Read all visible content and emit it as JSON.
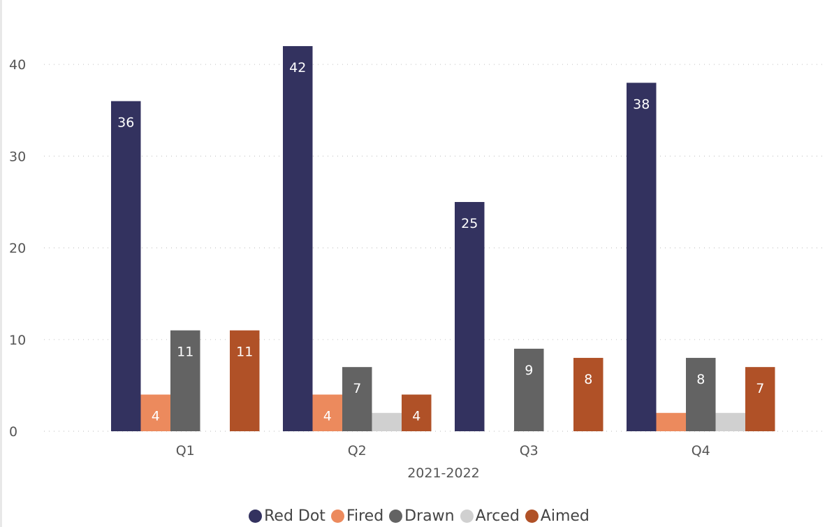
{
  "chart_data": {
    "type": "bar",
    "categories": [
      "Q1",
      "Q2",
      "Q3",
      "Q4"
    ],
    "xlabel": "2021-2022",
    "ylabel": "",
    "ylim": [
      0,
      45
    ],
    "yticks": [
      0,
      10,
      20,
      30,
      40
    ],
    "grid": true,
    "legend_position": "bottom",
    "series": [
      {
        "name": "Red Dot",
        "color": "#33325f",
        "label_color": "#ffffff",
        "values": [
          36,
          42,
          25,
          38
        ]
      },
      {
        "name": "Fired",
        "color": "#ec8a5d",
        "label_color": "#ffffff",
        "values": [
          4,
          4,
          0,
          2
        ]
      },
      {
        "name": "Drawn",
        "color": "#636363",
        "label_color": "#ffffff",
        "values": [
          11,
          7,
          9,
          8
        ]
      },
      {
        "name": "Arced",
        "color": "#d0d0d0",
        "label_color": "#555555",
        "values": [
          0,
          2,
          0,
          2
        ]
      },
      {
        "name": "Aimed",
        "color": "#b05127",
        "label_color": "#ffffff",
        "values": [
          11,
          4,
          8,
          7
        ]
      }
    ],
    "data_labels": [
      [
        "36",
        "42",
        "25",
        "38"
      ],
      [
        "4",
        "4",
        "",
        ""
      ],
      [
        "11",
        "7",
        "9",
        "8"
      ],
      [
        "",
        "",
        "",
        ""
      ],
      [
        "11",
        "4",
        "8",
        "7"
      ]
    ]
  }
}
